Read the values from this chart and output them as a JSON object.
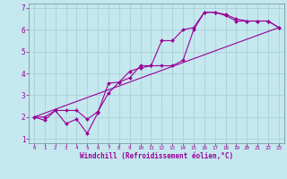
{
  "xlabel": "Windchill (Refroidissement éolien,°C)",
  "xlim": [
    -0.5,
    23.5
  ],
  "ylim": [
    0.8,
    7.2
  ],
  "xticks": [
    0,
    1,
    2,
    3,
    4,
    5,
    6,
    7,
    8,
    9,
    10,
    11,
    12,
    13,
    14,
    15,
    16,
    17,
    18,
    19,
    20,
    21,
    22,
    23
  ],
  "yticks": [
    1,
    2,
    3,
    4,
    5,
    6,
    7
  ],
  "bg_color": "#c5e8ef",
  "grid_color": "#aacfd8",
  "line_color": "#990099",
  "line1_x": [
    0,
    1,
    2,
    3,
    4,
    5,
    6,
    7,
    8,
    9,
    10,
    11,
    12,
    13,
    14,
    15,
    16,
    17,
    18,
    19,
    20,
    21,
    22,
    23
  ],
  "line1_y": [
    2.0,
    1.85,
    2.3,
    1.7,
    1.9,
    1.25,
    2.2,
    3.55,
    3.6,
    4.1,
    4.25,
    4.35,
    5.5,
    5.5,
    6.0,
    6.1,
    6.8,
    6.8,
    6.7,
    6.5,
    6.4,
    6.4,
    6.4,
    6.1
  ],
  "line2_x": [
    0,
    1,
    2,
    3,
    4,
    5,
    6,
    7,
    8,
    9,
    10,
    11,
    12,
    13,
    14,
    15,
    16,
    17,
    18,
    19,
    20,
    21,
    22,
    23
  ],
  "line2_y": [
    2.0,
    2.0,
    2.3,
    2.3,
    2.3,
    1.9,
    2.25,
    3.1,
    3.6,
    3.8,
    4.35,
    4.35,
    4.35,
    4.35,
    4.6,
    6.0,
    6.8,
    6.8,
    6.65,
    6.4,
    6.4,
    6.4,
    6.4,
    6.1
  ],
  "line3_x": [
    0,
    23
  ],
  "line3_y": [
    2.0,
    6.1
  ]
}
